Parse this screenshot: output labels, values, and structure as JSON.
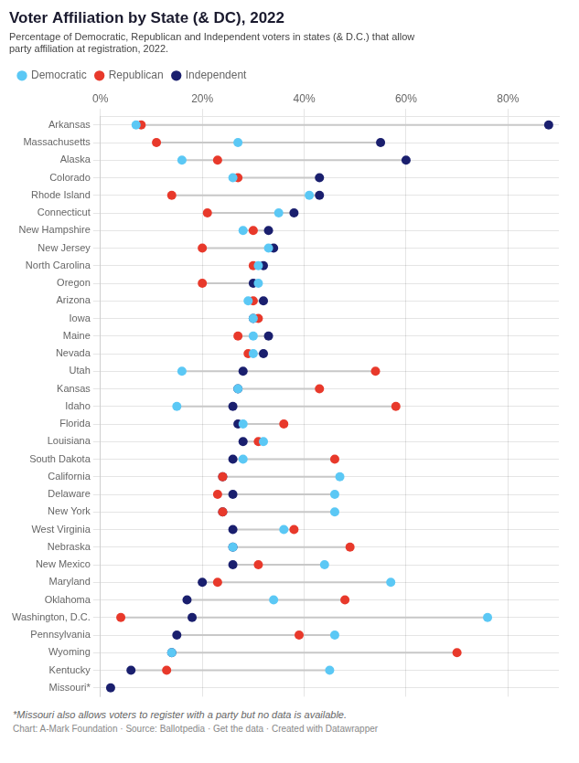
{
  "chart_data": {
    "type": "scatter",
    "orientation": "horizontal",
    "title": "Voter Affiliation by State (& DC), 2022",
    "subtitle": "Percentage of Democratic, Republican and Independent voters in states (& D.C.) that allow\nparty affiliation at registration, 2022.",
    "footnote": "*Missouri also allows voters to register with a party but no data is available.",
    "source": "Chart: A-Mark Foundation · Source: Ballotpedia · Get the data · Created with Datawrapper",
    "categories": [
      "Arkansas",
      "Massachusetts",
      "Alaska",
      "Colorado",
      "Rhode Island",
      "Connecticut",
      "New Hampshire",
      "New Jersey",
      "North Carolina",
      "Oregon",
      "Arizona",
      "Iowa",
      "Maine",
      "Nevada",
      "Utah",
      "Kansas",
      "Idaho",
      "Florida",
      "Louisiana",
      "South Dakota",
      "California",
      "Delaware",
      "New York",
      "West Virginia",
      "Nebraska",
      "New Mexico",
      "Maryland",
      "Oklahoma",
      "Washington, D.C.",
      "Pennsylvania",
      "Wyoming",
      "Kentucky",
      "Missouri*"
    ],
    "series": [
      {
        "name": "Democratic",
        "color": "#5bc8f5",
        "values": [
          7,
          27,
          16,
          26,
          41,
          35,
          28,
          33,
          31,
          31,
          29,
          30,
          30,
          30,
          16,
          27,
          15,
          28,
          32,
          28,
          47,
          46,
          46,
          36,
          26,
          44,
          57,
          34,
          76,
          46,
          14,
          45,
          null
        ]
      },
      {
        "name": "Republican",
        "color": "#e8392b",
        "values": [
          8,
          11,
          23,
          27,
          14,
          21,
          30,
          20,
          30,
          20,
          30,
          31,
          27,
          29,
          54,
          43,
          58,
          36,
          31,
          46,
          24,
          23,
          24,
          38,
          49,
          31,
          23,
          48,
          4,
          39,
          70,
          13,
          null
        ]
      },
      {
        "name": "Independent",
        "color": "#1a1f6e",
        "values": [
          88,
          55,
          60,
          43,
          43,
          38,
          33,
          34,
          32,
          30,
          32,
          30,
          33,
          32,
          28,
          27,
          26,
          27,
          28,
          26,
          24,
          26,
          24,
          26,
          26,
          26,
          20,
          17,
          18,
          15,
          14,
          6,
          2
        ]
      }
    ],
    "xlim": [
      0,
      90
    ],
    "xticks": [
      {
        "value": 0,
        "label": "0%"
      },
      {
        "value": 20,
        "label": "20%"
      },
      {
        "value": 40,
        "label": "40%"
      },
      {
        "value": 60,
        "label": "60%"
      },
      {
        "value": 80,
        "label": "80%"
      }
    ],
    "grid": true,
    "legend": "top",
    "marker": "circle"
  }
}
